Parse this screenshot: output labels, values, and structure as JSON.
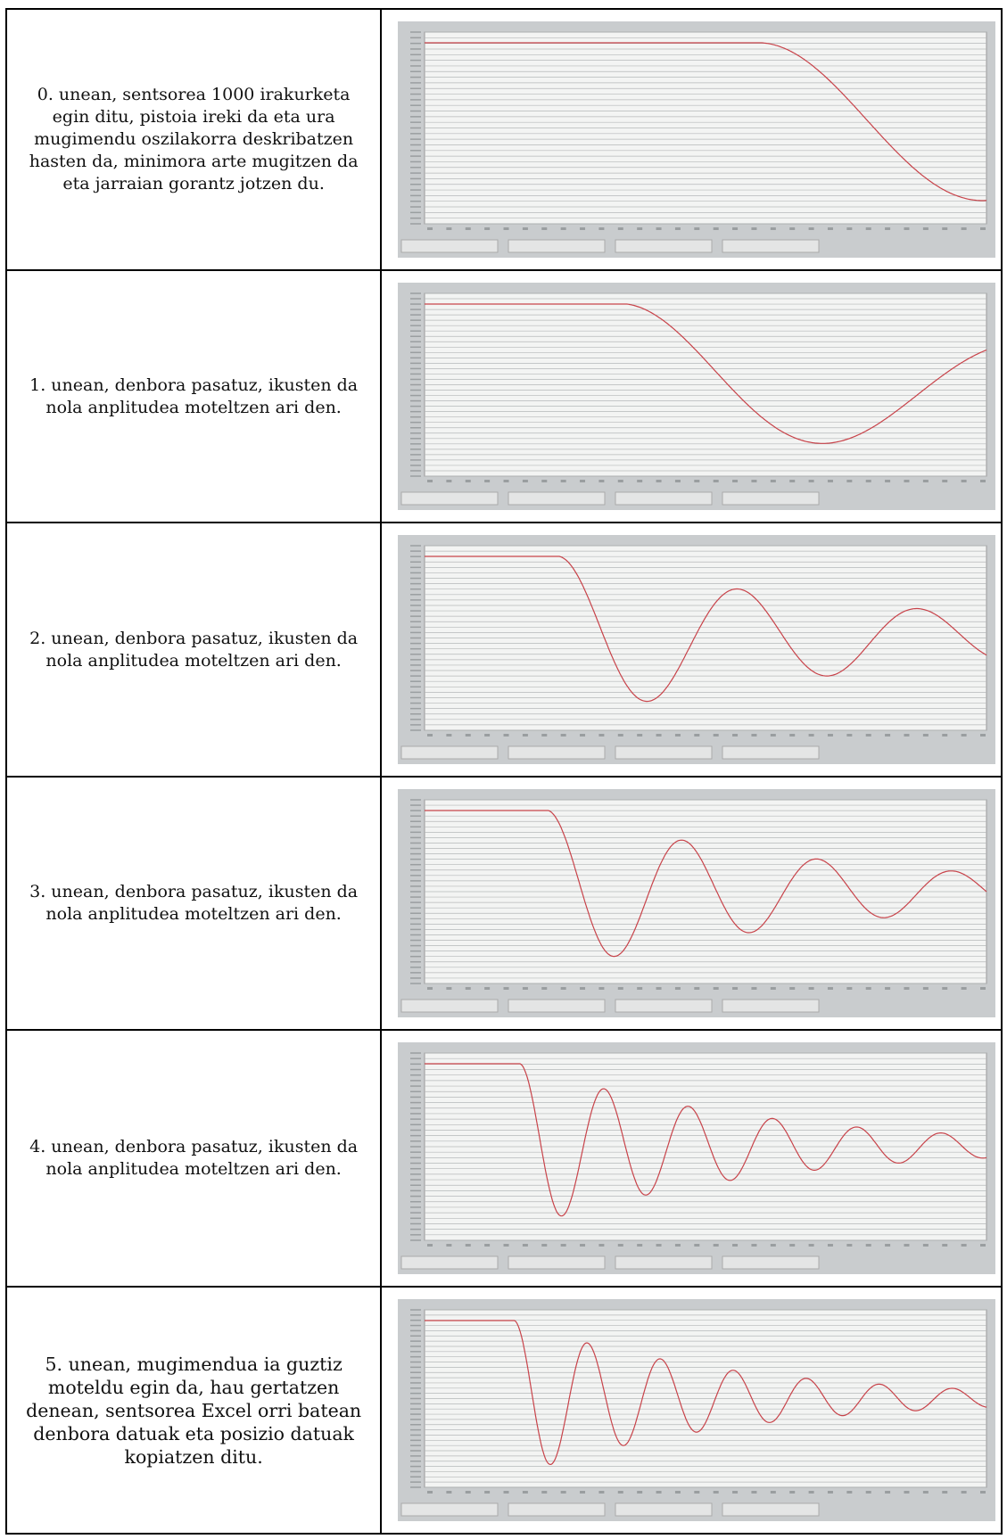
{
  "rows": [
    {
      "text": "0. unean, sentsorea 1000 irakurketa egin ditu, pistoia ireki da eta ura mugimendu oszilakorra deskribatzen hasten da, minimora arte mugitzen da eta jarraian gorantz jotzen du."
    },
    {
      "text": "1. unean, denbora pasatuz, ikusten da nola anplitudea moteltzen ari den."
    },
    {
      "text": "2. unean, denbora pasatuz, ikusten da nola anplitudea moteltzen ari den."
    },
    {
      "text": "3. unean, denbora pasatuz, ikusten da nola anplitudea moteltzen ari den."
    },
    {
      "text": "4. unean, denbora pasatuz, ikusten da nola anplitudea moteltzen ari den."
    },
    {
      "text": "5. unean, mugimendua ia guztiz moteldu egin da, hau gertatzen denean, sentsorea Excel orri batean denbora datuak eta posizio datuak kopiatzen ditu."
    }
  ]
}
